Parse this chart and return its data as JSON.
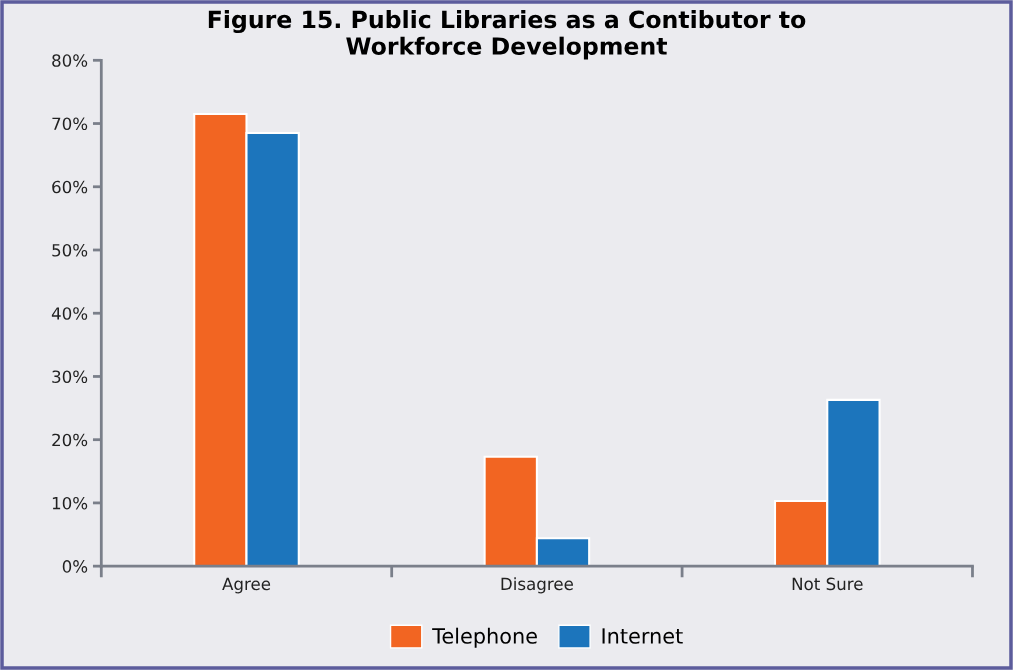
{
  "chart_data": {
    "type": "bar",
    "title": "Figure 15. Public Libraries as a Contibutor to\nWorkforce Development",
    "categories": [
      "Agree",
      "Disagree",
      "Not Sure"
    ],
    "series": [
      {
        "name": "Telephone",
        "color": "#f26522",
        "values": [
          71.5,
          17.3,
          10.3
        ]
      },
      {
        "name": "Internet",
        "color": "#1c75bc",
        "values": [
          68.5,
          4.4,
          26.3
        ]
      }
    ],
    "ylim": [
      0,
      80
    ],
    "yticks": [
      {
        "value": 0,
        "label": "0%"
      },
      {
        "value": 10,
        "label": "10%"
      },
      {
        "value": 20,
        "label": "20%"
      },
      {
        "value": 30,
        "label": "30%"
      },
      {
        "value": 40,
        "label": "40%"
      },
      {
        "value": 50,
        "label": "50%"
      },
      {
        "value": 60,
        "label": "60%"
      },
      {
        "value": 70,
        "label": "70%"
      },
      {
        "value": 80,
        "label": "80%"
      }
    ],
    "grid": false,
    "legend": "bottom"
  }
}
